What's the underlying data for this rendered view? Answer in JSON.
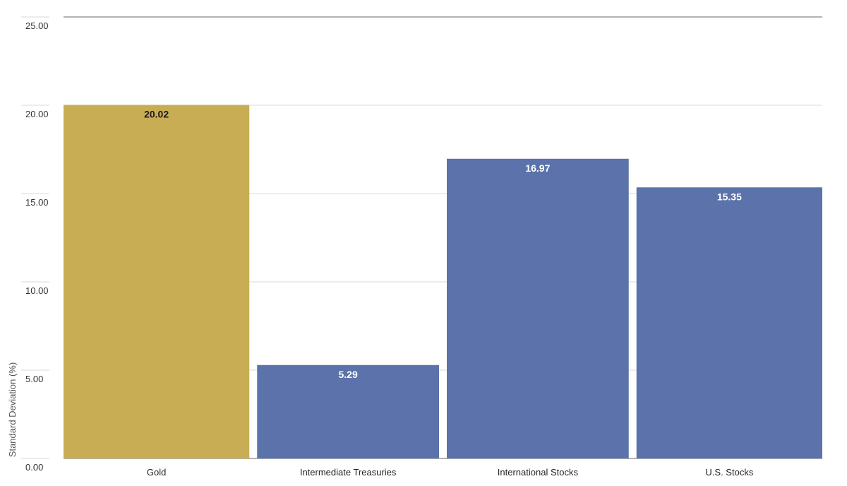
{
  "chart_data": {
    "type": "bar",
    "title": "",
    "xlabel": "",
    "ylabel": "Standard Deviation (%)",
    "categories": [
      "Gold",
      "Intermediate Treasuries",
      "International Stocks",
      "U.S. Stocks"
    ],
    "values": [
      20.02,
      5.29,
      16.97,
      15.35
    ],
    "value_labels": [
      "20.02",
      "5.29",
      "16.97",
      "15.35"
    ],
    "y_ticks": [
      "0.00",
      "5.00",
      "10.00",
      "15.00",
      "20.00",
      "25.00"
    ],
    "ylim": [
      0,
      25
    ],
    "grid": true,
    "legend": "none",
    "colors": {
      "Gold": "#c9ad55",
      "Intermediate Treasuries": "#5b73aa",
      "International Stocks": "#5b73aa",
      "U.S. Stocks": "#5b73aa",
      "gold_label": "#1a1a1a",
      "blue_label": "#ffffff",
      "gridline": "#d9d9d9",
      "axis": "#999999"
    }
  }
}
